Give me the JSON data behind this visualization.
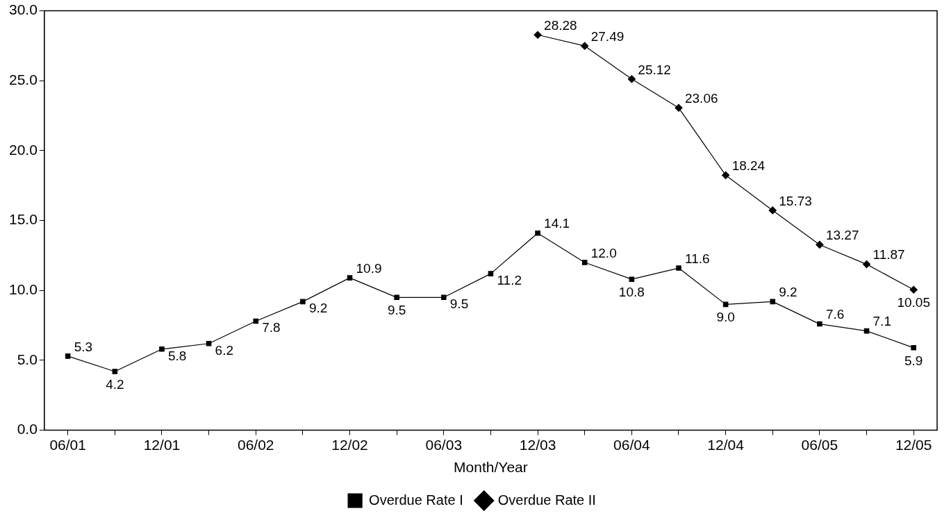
{
  "chart_data": {
    "type": "line",
    "xlabel": "Month/Year",
    "categories": [
      "06/01",
      null,
      "12/01",
      null,
      "06/02",
      null,
      "12/02",
      null,
      "06/03",
      null,
      "12/03",
      null,
      "06/04",
      null,
      "12/04",
      null,
      "06/05",
      null,
      "12/05"
    ],
    "series": [
      {
        "name": "Overdue Rate I",
        "color": "#000000",
        "marker": "square",
        "values": [
          5.3,
          4.2,
          5.8,
          6.2,
          7.8,
          9.2,
          10.9,
          9.5,
          9.5,
          11.2,
          14.1,
          12.0,
          10.8,
          11.6,
          9.0,
          9.2,
          7.6,
          7.1,
          5.9
        ],
        "value_labels": [
          "5.3",
          "4.2",
          "5.8",
          "6.2",
          "7.8",
          "9.2",
          "10.9",
          "9.5",
          "9.5",
          "11.2",
          "14.1",
          "12.0",
          "10.8",
          "11.6",
          "9.0",
          "9.2",
          "7.6",
          "7.1",
          "5.9"
        ]
      },
      {
        "name": "Overdue Rate II",
        "color": "#000000",
        "marker": "diamond",
        "values": [
          null,
          null,
          null,
          null,
          null,
          null,
          null,
          null,
          null,
          null,
          28.28,
          27.49,
          25.12,
          23.06,
          18.24,
          15.73,
          13.27,
          11.87,
          10.05
        ],
        "value_labels": [
          null,
          null,
          null,
          null,
          null,
          null,
          null,
          null,
          null,
          null,
          "28.28",
          "27.49",
          "25.12",
          "23.06",
          "18.24",
          "15.73",
          "13.27",
          "11.87",
          "10.05"
        ]
      }
    ],
    "ylim": [
      0,
      30
    ],
    "yticks": [
      {
        "value": 0,
        "label": "0.0"
      },
      {
        "value": 5,
        "label": "5.0"
      },
      {
        "value": 10,
        "label": "10.0"
      },
      {
        "value": 15,
        "label": "15.0"
      },
      {
        "value": 20,
        "label": "20.0"
      },
      {
        "value": 25,
        "label": "25.0"
      },
      {
        "value": 30,
        "label": "30.0"
      }
    ],
    "grid": false,
    "legend": "bottom",
    "line_style": "solid"
  }
}
